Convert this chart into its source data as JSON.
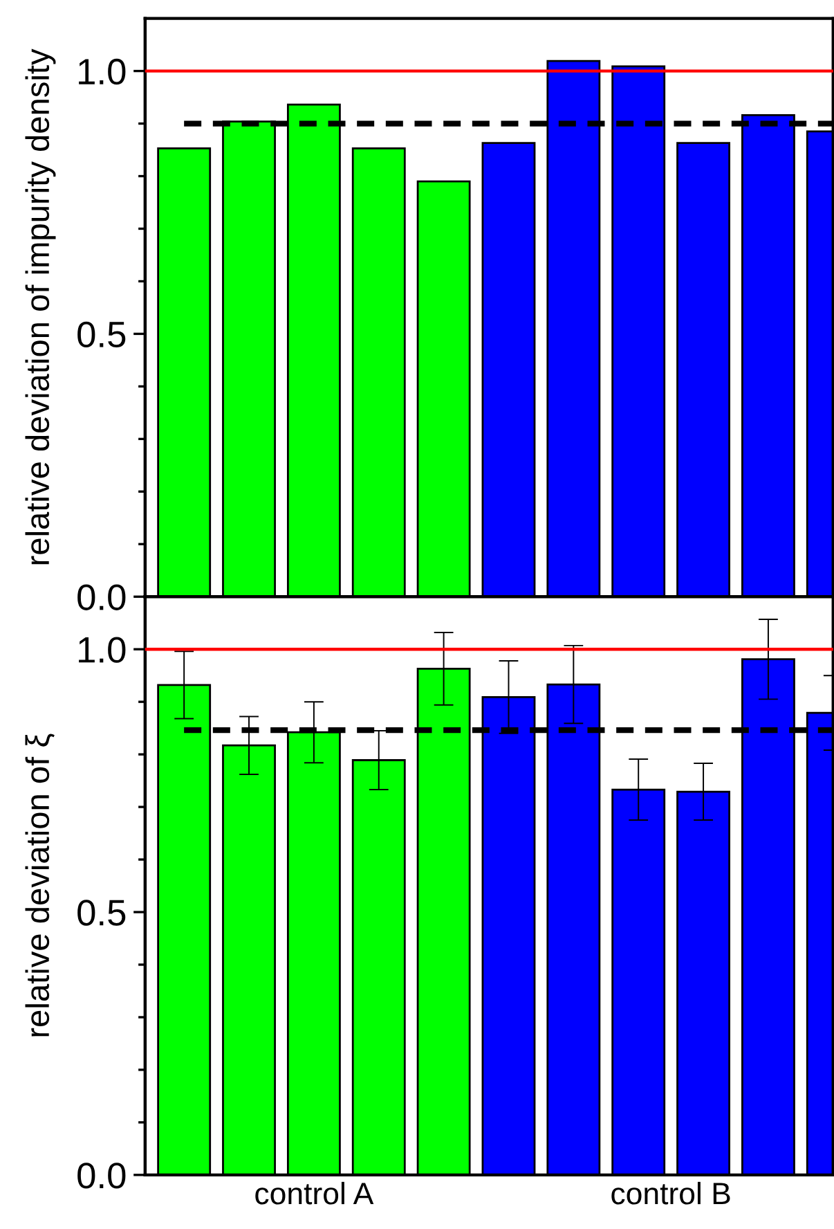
{
  "chart_data": [
    {
      "type": "bar",
      "ylabel": "relative deviation of impurity density",
      "categories": [
        null,
        null,
        null,
        null,
        null,
        null,
        null,
        null,
        null,
        null,
        null
      ],
      "values": [
        0.853,
        0.904,
        0.936,
        0.853,
        0.79,
        0.863,
        1.019,
        1.009,
        0.863,
        0.916,
        0.885
      ],
      "colors": [
        "#00ff00",
        "#00ff00",
        "#00ff00",
        "#00ff00",
        "#00ff00",
        "#0000ff",
        "#0000ff",
        "#0000ff",
        "#0000ff",
        "#0000ff",
        "#0000ff"
      ],
      "ylim": [
        0,
        1.1
      ],
      "yticks": [
        {
          "value": 0,
          "label": "0.0"
        },
        {
          "value": 0.1,
          "label": null
        },
        {
          "value": 0.2,
          "label": null
        },
        {
          "value": 0.3,
          "label": null
        },
        {
          "value": 0.4,
          "label": null
        },
        0.5,
        {
          "value": 0.6,
          "label": null
        },
        {
          "value": 0.7,
          "label": null
        },
        {
          "value": 0.8,
          "label": null
        },
        {
          "value": 0.9,
          "label": null
        },
        {
          "value": 1,
          "label": "1.0"
        }
      ],
      "ref_lines": [
        {
          "axis": "y",
          "value": 1.0,
          "color": "#ff0000",
          "line_style": "solid"
        },
        {
          "axis": "y",
          "value": 0.9,
          "color": "#000000",
          "line_style": "dashed"
        }
      ],
      "tick_labels": "y"
    },
    {
      "type": "bar",
      "ylabel": "relative deviation of ξ",
      "categories": [
        null,
        null,
        null,
        null,
        null,
        null,
        null,
        null,
        null,
        null,
        null
      ],
      "values": [
        0.932,
        0.817,
        0.842,
        0.789,
        0.963,
        0.909,
        0.933,
        0.733,
        0.729,
        0.981,
        0.879
      ],
      "errors": [
        0.064,
        0.055,
        0.058,
        0.056,
        0.069,
        0.069,
        0.074,
        0.058,
        0.054,
        0.076,
        0.071
      ],
      "colors": [
        "#00ff00",
        "#00ff00",
        "#00ff00",
        "#00ff00",
        "#00ff00",
        "#0000ff",
        "#0000ff",
        "#0000ff",
        "#0000ff",
        "#0000ff",
        "#0000ff"
      ],
      "ylim": [
        0,
        1.1
      ],
      "yticks": [
        {
          "value": 0,
          "label": "0.0"
        },
        {
          "value": 0.1,
          "label": null
        },
        {
          "value": 0.2,
          "label": null
        },
        {
          "value": 0.3,
          "label": null
        },
        {
          "value": 0.4,
          "label": null
        },
        0.5,
        {
          "value": 0.6,
          "label": null
        },
        {
          "value": 0.7,
          "label": null
        },
        {
          "value": 0.8,
          "label": null
        },
        {
          "value": 0.9,
          "label": null
        },
        {
          "value": 1,
          "label": "1.0"
        }
      ],
      "ref_lines": [
        {
          "axis": "y",
          "value": 1.0,
          "color": "#ff0000",
          "line_style": "solid"
        },
        {
          "axis": "y",
          "value": 0.846,
          "color": "#000000",
          "line_style": "dashed"
        }
      ],
      "annotations": [
        "control A",
        "control B"
      ]
    }
  ]
}
